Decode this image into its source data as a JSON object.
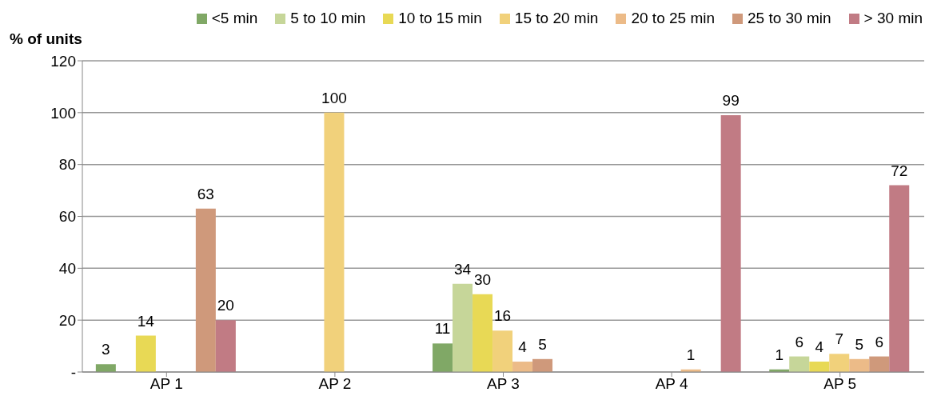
{
  "chart_data": {
    "type": "bar",
    "ylabel": "% of units",
    "categories": [
      "AP 1",
      "AP 2",
      "AP 3",
      "AP 4",
      "AP 5"
    ],
    "series": [
      {
        "name": "<5 min",
        "color": "#80a866",
        "values": [
          3,
          null,
          11,
          null,
          1
        ]
      },
      {
        "name": "5 to 10 min",
        "color": "#c6d699",
        "values": [
          null,
          null,
          34,
          null,
          6
        ]
      },
      {
        "name": "10 to 15 min",
        "color": "#e8d955",
        "values": [
          14,
          null,
          30,
          null,
          4
        ]
      },
      {
        "name": "15 to 20 min",
        "color": "#f1d17b",
        "values": [
          null,
          100,
          16,
          null,
          7
        ]
      },
      {
        "name": "20 to 25 min",
        "color": "#ecbb88",
        "values": [
          null,
          null,
          4,
          1,
          5
        ]
      },
      {
        "name": "25 to 30 min",
        "color": "#cf997b",
        "values": [
          63,
          null,
          5,
          null,
          6
        ]
      },
      {
        "name": "> 30 min",
        "color": "#c17b84",
        "values": [
          20,
          null,
          null,
          99,
          72
        ]
      }
    ],
    "ylim": [
      0,
      120
    ],
    "yticks": [
      {
        "value": 0,
        "label": "-"
      },
      20,
      40,
      60,
      80,
      100,
      120
    ],
    "grid": "y",
    "legend": "top",
    "data_labels": true
  }
}
